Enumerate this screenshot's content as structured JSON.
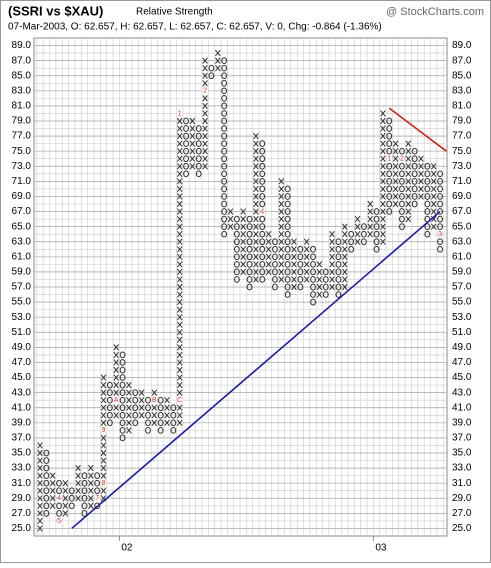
{
  "chart_data": {
    "type": "point-and-figure",
    "title": "(SSRI vs $XAU)",
    "subtitle": "Relative Strength",
    "source": "@ StockCharts.com",
    "info": "07-Mar-2003, O: 62.657, H: 62.657, L: 62.657, C: 62.657, V: 0, Chg: -0.864 (-1.36%)",
    "box_size": 1,
    "ylim": [
      24,
      90
    ],
    "yticks": [
      {
        "value": 25,
        "label": "25.0"
      },
      {
        "value": 27,
        "label": "27.0"
      },
      {
        "value": 29,
        "label": "29.0"
      },
      {
        "value": 31,
        "label": "31.0"
      },
      {
        "value": 33,
        "label": "33.0"
      },
      {
        "value": 35,
        "label": "35.0"
      },
      {
        "value": 37,
        "label": "37.0"
      },
      {
        "value": 39,
        "label": "39.0"
      },
      {
        "value": 41,
        "label": "41.0"
      },
      {
        "value": 43,
        "label": "43.0"
      },
      {
        "value": 45,
        "label": "45.0"
      },
      {
        "value": 47,
        "label": "47.0"
      },
      {
        "value": 49,
        "label": "49.0"
      },
      {
        "value": 51,
        "label": "51.0"
      },
      {
        "value": 53,
        "label": "53.0"
      },
      {
        "value": 55,
        "label": "55.0"
      },
      {
        "value": 57,
        "label": "57.0"
      },
      {
        "value": 59,
        "label": "59.0"
      },
      {
        "value": 61,
        "label": "61.0"
      },
      {
        "value": 63,
        "label": "63.0"
      },
      {
        "value": 65,
        "label": "65.0"
      },
      {
        "value": 67,
        "label": "67.0"
      },
      {
        "value": 69,
        "label": "69.0"
      },
      {
        "value": 71,
        "label": "71.0"
      },
      {
        "value": 73,
        "label": "73.0"
      },
      {
        "value": 75,
        "label": "75.0"
      },
      {
        "value": 77,
        "label": "77.0"
      },
      {
        "value": 79,
        "label": "79.0"
      },
      {
        "value": 81,
        "label": "81.0"
      },
      {
        "value": 83,
        "label": "83.0"
      },
      {
        "value": 85,
        "label": "85.0"
      },
      {
        "value": 87,
        "label": "87.0"
      },
      {
        "value": 89,
        "label": "89.0"
      }
    ],
    "grid": true,
    "columns": [
      {
        "kind": "X",
        "from": 25,
        "to": 36
      },
      {
        "kind": "O",
        "from": 35,
        "to": 27
      },
      {
        "kind": "X",
        "from": 28,
        "to": 32
      },
      {
        "kind": "O",
        "from": 31,
        "to": 26
      },
      {
        "kind": "X",
        "from": 27,
        "to": 31
      },
      {
        "kind": "O",
        "from": 30,
        "to": 28
      },
      {
        "kind": "X",
        "from": 29,
        "to": 33
      },
      {
        "kind": "O",
        "from": 32,
        "to": 27
      },
      {
        "kind": "X",
        "from": 28,
        "to": 33
      },
      {
        "kind": "O",
        "from": 32,
        "to": 28
      },
      {
        "kind": "X",
        "from": 29,
        "to": 45
      },
      {
        "kind": "O",
        "from": 44,
        "to": 39
      },
      {
        "kind": "X",
        "from": 40,
        "to": 49
      },
      {
        "kind": "O",
        "from": 48,
        "to": 37
      },
      {
        "kind": "X",
        "from": 38,
        "to": 44
      },
      {
        "kind": "O",
        "from": 43,
        "to": 39
      },
      {
        "kind": "X",
        "from": 40,
        "to": 43
      },
      {
        "kind": "O",
        "from": 42,
        "to": 38
      },
      {
        "kind": "X",
        "from": 39,
        "to": 43
      },
      {
        "kind": "O",
        "from": 42,
        "to": 38
      },
      {
        "kind": "X",
        "from": 39,
        "to": 42
      },
      {
        "kind": "O",
        "from": 41,
        "to": 38
      },
      {
        "kind": "X",
        "from": 39,
        "to": 80
      },
      {
        "kind": "O",
        "from": 79,
        "to": 72
      },
      {
        "kind": "X",
        "from": 73,
        "to": 79
      },
      {
        "kind": "O",
        "from": 78,
        "to": 72
      },
      {
        "kind": "X",
        "from": 73,
        "to": 87
      },
      {
        "kind": "O",
        "from": 86,
        "to": 85
      },
      {
        "kind": "X",
        "from": 86,
        "to": 88
      },
      {
        "kind": "O",
        "from": 87,
        "to": 64
      },
      {
        "kind": "X",
        "from": 65,
        "to": 67
      },
      {
        "kind": "O",
        "from": 66,
        "to": 58
      },
      {
        "kind": "X",
        "from": 59,
        "to": 67
      },
      {
        "kind": "O",
        "from": 66,
        "to": 57
      },
      {
        "kind": "X",
        "from": 58,
        "to": 77
      },
      {
        "kind": "O",
        "from": 76,
        "to": 58
      },
      {
        "kind": "X",
        "from": 59,
        "to": 64
      },
      {
        "kind": "O",
        "from": 63,
        "to": 57
      },
      {
        "kind": "X",
        "from": 58,
        "to": 71
      },
      {
        "kind": "O",
        "from": 70,
        "to": 56
      },
      {
        "kind": "X",
        "from": 57,
        "to": 63
      },
      {
        "kind": "O",
        "from": 62,
        "to": 57
      },
      {
        "kind": "X",
        "from": 58,
        "to": 63
      },
      {
        "kind": "O",
        "from": 62,
        "to": 55
      },
      {
        "kind": "X",
        "from": 56,
        "to": 60
      },
      {
        "kind": "O",
        "from": 59,
        "to": 56
      },
      {
        "kind": "X",
        "from": 57,
        "to": 64
      },
      {
        "kind": "O",
        "from": 63,
        "to": 56
      },
      {
        "kind": "X",
        "from": 57,
        "to": 65
      },
      {
        "kind": "O",
        "from": 64,
        "to": 62
      },
      {
        "kind": "X",
        "from": 63,
        "to": 66
      },
      {
        "kind": "O",
        "from": 65,
        "to": 63
      },
      {
        "kind": "X",
        "from": 64,
        "to": 68
      },
      {
        "kind": "O",
        "from": 67,
        "to": 62
      },
      {
        "kind": "X",
        "from": 63,
        "to": 80
      },
      {
        "kind": "O",
        "from": 79,
        "to": 67
      },
      {
        "kind": "X",
        "from": 68,
        "to": 76
      },
      {
        "kind": "O",
        "from": 75,
        "to": 65
      },
      {
        "kind": "X",
        "from": 66,
        "to": 76
      },
      {
        "kind": "O",
        "from": 75,
        "to": 68
      },
      {
        "kind": "X",
        "from": 69,
        "to": 74
      },
      {
        "kind": "O",
        "from": 73,
        "to": 64
      },
      {
        "kind": "X",
        "from": 65,
        "to": 73
      },
      {
        "kind": "O",
        "from": 72,
        "to": 62
      }
    ],
    "month_marks": [
      {
        "col": 3,
        "value": 29,
        "label": "4"
      },
      {
        "col": 3,
        "value": 26,
        "label": "5"
      },
      {
        "col": 9,
        "value": 29,
        "label": "7"
      },
      {
        "col": 10,
        "value": 31,
        "label": "8"
      },
      {
        "col": 10,
        "value": 38,
        "label": "9"
      },
      {
        "col": 12,
        "value": 42,
        "label": "A"
      },
      {
        "col": 18,
        "value": 42,
        "label": "B"
      },
      {
        "col": 22,
        "value": 42,
        "label": "C"
      },
      {
        "col": 22,
        "value": 80,
        "label": "1"
      },
      {
        "col": 26,
        "value": 83,
        "label": "2"
      },
      {
        "col": 35,
        "value": 67,
        "label": "4"
      },
      {
        "col": 55,
        "value": 74,
        "label": "1"
      },
      {
        "col": 57,
        "value": 74,
        "label": "2"
      },
      {
        "col": 63,
        "value": 64,
        "label": "3"
      }
    ],
    "xlabels": [
      {
        "col": 13,
        "label": "02"
      },
      {
        "col": 53,
        "label": "03"
      }
    ],
    "trendlines": [
      {
        "color": "#1a1aa6",
        "from": [
          5,
          25
        ],
        "to": [
          63,
          67
        ]
      },
      {
        "color": "#cc2222",
        "from": [
          55,
          80.7
        ],
        "to": [
          64,
          75
        ]
      }
    ],
    "mark_color": "#333333",
    "month_color": "#dd3322"
  }
}
